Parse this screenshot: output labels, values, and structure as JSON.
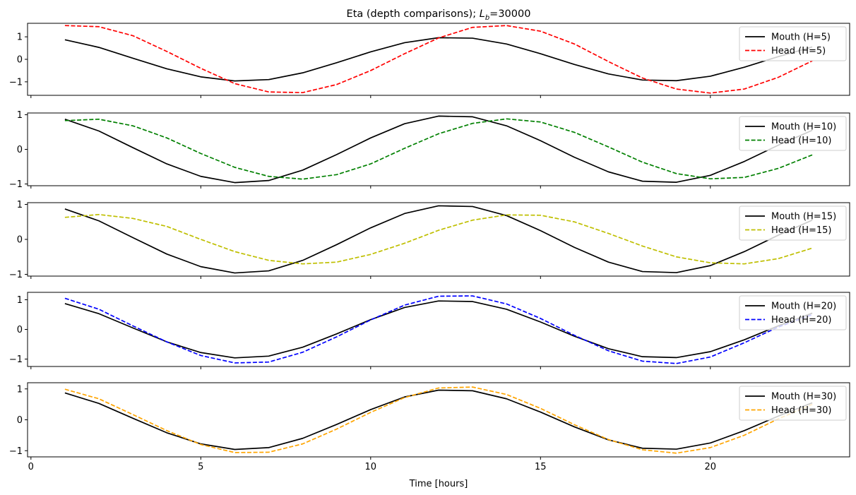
{
  "chart_data": {
    "type": "line",
    "title_main": "Eta (depth comparisons); ",
    "title_symbol": "L",
    "title_subscript": "b",
    "title_value": "=30000",
    "xlabel": "Time [hours]",
    "xlim": [
      -0.1,
      24.1
    ],
    "xticks": [
      0,
      5,
      10,
      15,
      20
    ],
    "x": [
      1,
      2,
      3,
      4,
      5,
      6,
      7,
      8,
      9,
      10,
      11,
      12,
      13,
      14,
      15,
      16,
      17,
      18,
      19,
      20,
      21,
      22,
      23
    ],
    "mouth_values": [
      0.87,
      0.53,
      0.05,
      -0.42,
      -0.78,
      -0.96,
      -0.9,
      -0.6,
      -0.15,
      0.33,
      0.74,
      0.96,
      0.94,
      0.68,
      0.25,
      -0.23,
      -0.65,
      -0.92,
      -0.95,
      -0.75,
      -0.35,
      0.12,
      0.55
    ],
    "panels": [
      {
        "ylim": [
          -1.6,
          1.6
        ],
        "yticks": [
          -1,
          0,
          1
        ],
        "series": [
          {
            "name": "Mouth (H=5)",
            "color": "#000000",
            "dash": "solid"
          },
          {
            "name": "Head (H=5)",
            "color": "#ff0000",
            "dash": "dashed",
            "values": [
              1.5,
              1.45,
              1.05,
              0.35,
              -0.4,
              -1.08,
              -1.45,
              -1.48,
              -1.12,
              -0.5,
              0.25,
              0.95,
              1.42,
              1.5,
              1.25,
              0.68,
              -0.1,
              -0.83,
              -1.32,
              -1.5,
              -1.32,
              -0.8,
              -0.07
            ]
          }
        ]
      },
      {
        "ylim": [
          -1.05,
          1.05
        ],
        "yticks": [
          -1,
          0,
          1
        ],
        "series": [
          {
            "name": "Mouth (H=10)",
            "color": "#000000",
            "dash": "solid"
          },
          {
            "name": "Head (H=10)",
            "color": "#008000",
            "dash": "dashed",
            "values": [
              0.83,
              0.87,
              0.68,
              0.33,
              -0.12,
              -0.52,
              -0.78,
              -0.86,
              -0.73,
              -0.42,
              0.03,
              0.45,
              0.75,
              0.88,
              0.79,
              0.49,
              0.07,
              -0.37,
              -0.7,
              -0.85,
              -0.81,
              -0.55,
              -0.16
            ]
          }
        ]
      },
      {
        "ylim": [
          -1.05,
          1.05
        ],
        "yticks": [
          -1,
          0,
          1
        ],
        "series": [
          {
            "name": "Mouth (H=15)",
            "color": "#000000",
            "dash": "solid"
          },
          {
            "name": "Head (H=15)",
            "color": "#bfbf00",
            "dash": "dashed",
            "values": [
              0.63,
              0.71,
              0.6,
              0.37,
              0.0,
              -0.35,
              -0.6,
              -0.7,
              -0.65,
              -0.43,
              -0.11,
              0.26,
              0.55,
              0.7,
              0.69,
              0.5,
              0.17,
              -0.19,
              -0.5,
              -0.67,
              -0.7,
              -0.55,
              -0.25
            ]
          }
        ]
      },
      {
        "ylim": [
          -1.25,
          1.25
        ],
        "yticks": [
          -1,
          0,
          1
        ],
        "series": [
          {
            "name": "Mouth (H=20)",
            "color": "#000000",
            "dash": "solid"
          },
          {
            "name": "Head (H=20)",
            "color": "#0000ff",
            "dash": "dashed",
            "values": [
              1.05,
              0.68,
              0.12,
              -0.42,
              -0.88,
              -1.13,
              -1.1,
              -0.77,
              -0.25,
              0.32,
              0.82,
              1.12,
              1.13,
              0.86,
              0.37,
              -0.2,
              -0.72,
              -1.07,
              -1.15,
              -0.93,
              -0.45,
              0.08,
              0.5
            ]
          }
        ]
      },
      {
        "ylim": [
          -1.2,
          1.2
        ],
        "yticks": [
          -1,
          0,
          1
        ],
        "series": [
          {
            "name": "Mouth (H=30)",
            "color": "#000000",
            "dash": "solid"
          },
          {
            "name": "Head (H=30)",
            "color": "#ffa500",
            "dash": "dashed",
            "values": [
              0.99,
              0.68,
              0.17,
              -0.35,
              -0.8,
              -1.06,
              -1.05,
              -0.78,
              -0.3,
              0.24,
              0.72,
              1.03,
              1.06,
              0.82,
              0.37,
              -0.16,
              -0.64,
              -0.97,
              -1.08,
              -0.9,
              -0.5,
              0.03,
              0.5
            ]
          }
        ]
      }
    ]
  }
}
